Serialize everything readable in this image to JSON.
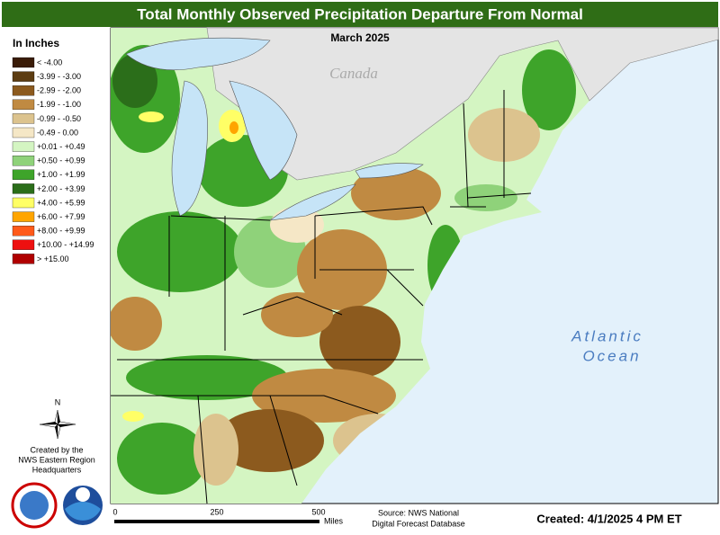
{
  "title": "Total Monthly Observed Precipitation Departure From Normal",
  "subtitle": "March 2025",
  "legend": {
    "title": "In Inches",
    "items": [
      {
        "label": "< -4.00",
        "color": "#3a1c08"
      },
      {
        "label": "-3.99 - -3.00",
        "color": "#5c3c12"
      },
      {
        "label": "-2.99 - -2.00",
        "color": "#8c5a1e"
      },
      {
        "label": "-1.99 - -1.00",
        "color": "#c08a42"
      },
      {
        "label": "-0.99 - -0.50",
        "color": "#dcc38e"
      },
      {
        "label": "-0.49 - 0.00",
        "color": "#f5e7c6"
      },
      {
        "label": "+0.01 - +0.49",
        "color": "#d4f5c2"
      },
      {
        "label": "+0.50 - +0.99",
        "color": "#8fd27a"
      },
      {
        "label": "+1.00 - +1.99",
        "color": "#3ea42a"
      },
      {
        "label": "+2.00 - +3.99",
        "color": "#2b6e1a"
      },
      {
        "label": "+4.00 - +5.99",
        "color": "#ffff66"
      },
      {
        "label": "+6.00 - +7.99",
        "color": "#ffa500"
      },
      {
        "label": "+8.00 - +9.99",
        "color": "#ff5a1a"
      },
      {
        "label": "+10.00 - +14.99",
        "color": "#ee1010"
      },
      {
        "label": "> +15.00",
        "color": "#b00000"
      }
    ]
  },
  "map_labels": {
    "country": "Canada",
    "ocean_line1": "Atlantic",
    "ocean_line2": "Ocean"
  },
  "compass": "N",
  "credit": [
    "Created by the",
    "NWS Eastern Region",
    "Headquarters"
  ],
  "scale": {
    "ticks": [
      "0",
      "250",
      "500"
    ],
    "unit": "Miles"
  },
  "source": [
    "Source: NWS National",
    "Digital Forecast Database"
  ],
  "created": "Created: 4/1/2025 4 PM ET"
}
